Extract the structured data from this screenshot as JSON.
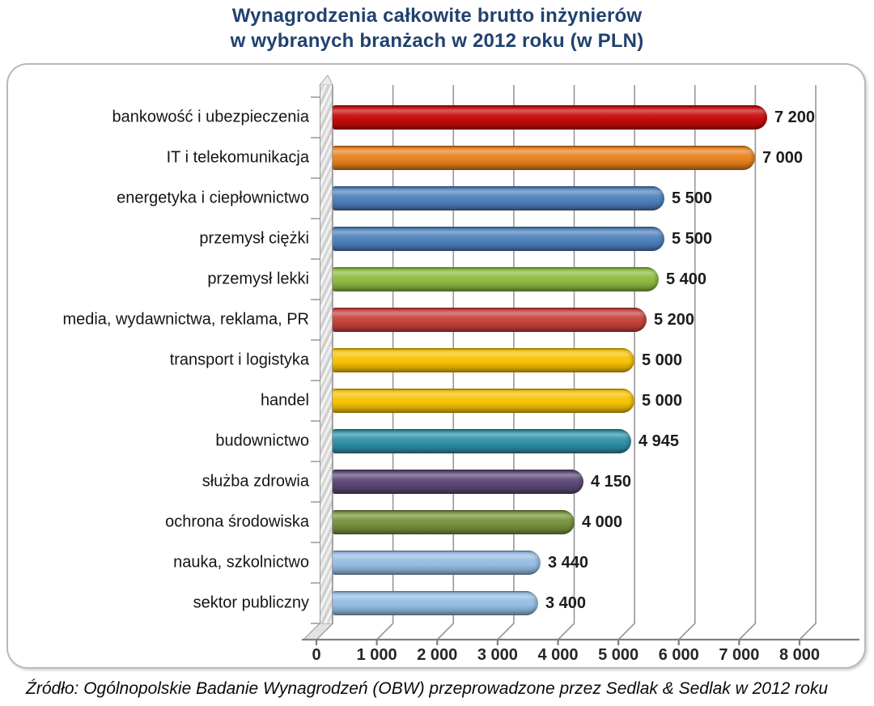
{
  "title": {
    "line1": "Wynagrodzenia całkowite brutto inżynierów",
    "line2": "w wybranych branżach  w 2012 roku (w PLN)"
  },
  "source": {
    "text": "Źródło: Ogólnopolskie Badanie Wynagrodzeń (OBW) przeprowadzone przez Sedlak & Sedlak w 2012 roku"
  },
  "colors": {
    "title": "#21426F",
    "gridline": "#979797",
    "axis": "#808080",
    "frame_border": "#b9b9b9"
  },
  "chart_data": {
    "type": "bar",
    "orientation": "horizontal",
    "title": "Wynagrodzenia całkowite brutto inżynierów w wybranych branżach w 2012 roku (w PLN)",
    "xlabel": "",
    "ylabel": "",
    "xlim": [
      0,
      8000
    ],
    "grid": true,
    "legend": false,
    "categories": [
      "bankowość i ubezpieczenia",
      "IT i telekomunikacja",
      "energetyka i ciepłownictwo",
      "przemysł ciężki",
      "przemysł lekki",
      "media, wydawnictwa,  reklama, PR",
      "transport i logistyka",
      "handel",
      "budownictwo",
      "służba zdrowia",
      "ochrona środowiska",
      "nauka, szkolnictwo",
      "sektor publiczny"
    ],
    "values": [
      7200,
      7000,
      5500,
      5500,
      5400,
      5200,
      5000,
      5000,
      4945,
      4150,
      4000,
      3440,
      3400
    ],
    "value_labels": [
      "7 200",
      "7 000",
      "5 500",
      "5 500",
      "5 400",
      "5 200",
      "5 000",
      "5 000",
      "4 945",
      "4 150",
      "4 000",
      "3 440",
      "3 400"
    ],
    "bar_colors": [
      "#C80A0A",
      "#E8821D",
      "#4E81BD",
      "#4E81BD",
      "#8CBB40",
      "#C7423C",
      "#F5C100",
      "#F5C100",
      "#2E90A6",
      "#5C4877",
      "#76923C",
      "#94BCE2",
      "#94BCE2"
    ],
    "x_ticks": [
      0,
      1000,
      2000,
      3000,
      4000,
      5000,
      6000,
      7000,
      8000
    ],
    "x_tick_labels": [
      "0",
      "1 000",
      "2 000",
      "3 000",
      "4 000",
      "5 000",
      "6 000",
      "7 000",
      "8 000"
    ]
  }
}
